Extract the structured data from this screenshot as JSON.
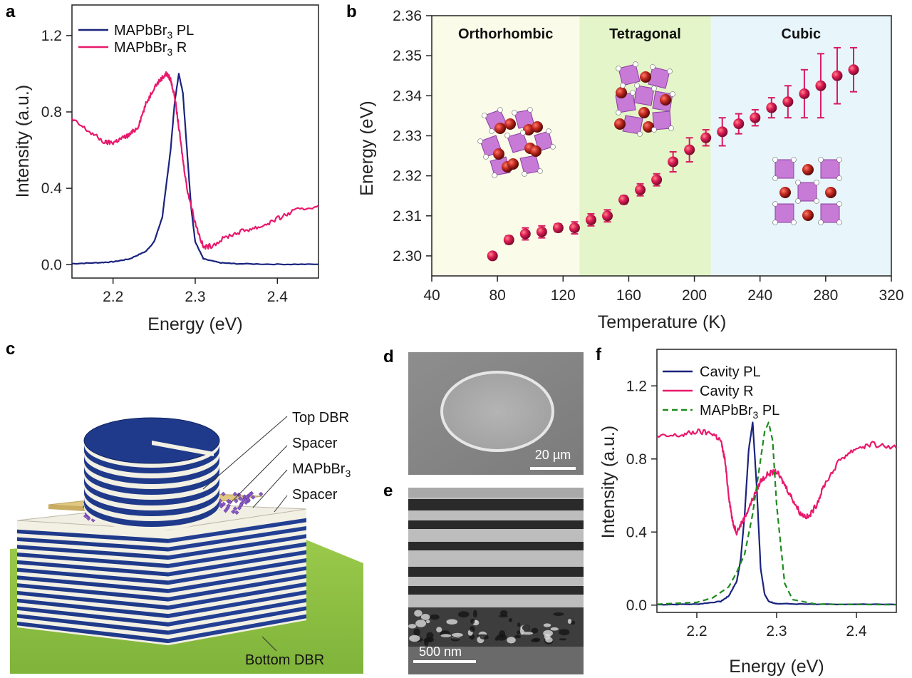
{
  "panels": {
    "a": {
      "letter": "a"
    },
    "b": {
      "letter": "b"
    },
    "c": {
      "letter": "c"
    },
    "d": {
      "letter": "d"
    },
    "e": {
      "letter": "e"
    },
    "f": {
      "letter": "f"
    }
  },
  "colors": {
    "pl": "#1a237e",
    "reflect": "#e8196c",
    "green": "#1e8a1e",
    "dots": "#d81b60",
    "orthorhombic": "#fbfbea",
    "tetragonal": "#e4f5c9",
    "cubic": "#e8f6fb"
  },
  "schematic": {
    "labels": [
      "Top DBR",
      "Spacer",
      "MAPbBr3",
      "Spacer",
      "Bottom DBR"
    ]
  },
  "sem": {
    "scalebar": "20 µm"
  },
  "tem": {
    "scalebar": "500 nm"
  },
  "chart_data": [
    {
      "id": "a",
      "type": "line",
      "xlabel": "Energy (eV)",
      "ylabel": "Intensity (a.u.)",
      "xlim": [
        2.15,
        2.45
      ],
      "ylim": [
        -0.07,
        1.36
      ],
      "xticks": [
        "2.2",
        "2.3",
        "2.4"
      ],
      "yticks": [
        "0.0",
        "0.4",
        "0.8",
        "1.2"
      ],
      "series": [
        {
          "name": "MAPbBr3 PL",
          "x": [
            2.15,
            2.18,
            2.2,
            2.22,
            2.24,
            2.25,
            2.26,
            2.27,
            2.275,
            2.28,
            2.285,
            2.29,
            2.295,
            2.3,
            2.31,
            2.33,
            2.35,
            2.4,
            2.45
          ],
          "y": [
            0.005,
            0.01,
            0.015,
            0.03,
            0.07,
            0.12,
            0.25,
            0.6,
            0.85,
            1.0,
            0.9,
            0.6,
            0.3,
            0.12,
            0.03,
            0.01,
            0.005,
            0.002,
            0.002
          ]
        },
        {
          "name": "MAPbBr3 R",
          "x": [
            2.15,
            2.17,
            2.19,
            2.2,
            2.21,
            2.22,
            2.23,
            2.24,
            2.25,
            2.26,
            2.265,
            2.27,
            2.275,
            2.28,
            2.285,
            2.29,
            2.3,
            2.31,
            2.32,
            2.34,
            2.36,
            2.38,
            2.4,
            2.42,
            2.45
          ],
          "y": [
            0.76,
            0.7,
            0.64,
            0.64,
            0.66,
            0.68,
            0.72,
            0.84,
            0.93,
            0.98,
            1.0,
            0.97,
            0.88,
            0.72,
            0.55,
            0.4,
            0.22,
            0.09,
            0.1,
            0.15,
            0.18,
            0.2,
            0.24,
            0.28,
            0.31
          ]
        }
      ]
    },
    {
      "id": "b",
      "type": "scatter",
      "xlabel": "Temperature (K)",
      "ylabel": "Energy (eV)",
      "xlim": [
        40,
        320
      ],
      "ylim": [
        2.295,
        2.36
      ],
      "xticks": [
        "40",
        "80",
        "120",
        "160",
        "200",
        "240",
        "280",
        "320"
      ],
      "yticks": [
        "2.30",
        "2.31",
        "2.32",
        "2.33",
        "2.34",
        "2.35",
        "2.36"
      ],
      "phases": [
        {
          "name": "Orthorhombic",
          "from": 40,
          "to": 130
        },
        {
          "name": "Tetragonal",
          "from": 130,
          "to": 210
        },
        {
          "name": "Cubic",
          "from": 210,
          "to": 320
        }
      ],
      "x": [
        77,
        87,
        97,
        107,
        117,
        127,
        137,
        147,
        157,
        167,
        177,
        187,
        197,
        207,
        217,
        227,
        237,
        247,
        257,
        267,
        277,
        287,
        297
      ],
      "y": [
        2.3,
        2.304,
        2.3055,
        2.306,
        2.307,
        2.307,
        2.309,
        2.31,
        2.314,
        2.3165,
        2.319,
        2.3235,
        2.3265,
        2.3295,
        2.331,
        2.333,
        2.3345,
        2.337,
        2.3385,
        2.3405,
        2.3425,
        2.345,
        2.3465
      ],
      "err": [
        0,
        0.001,
        0.0015,
        0.0015,
        0.001,
        0.0015,
        0.0015,
        0.0015,
        0.001,
        0.0015,
        0.0015,
        0.0025,
        0.003,
        0.002,
        0.0035,
        0.0025,
        0.002,
        0.0025,
        0.004,
        0.006,
        0.008,
        0.007,
        0.0055
      ]
    },
    {
      "id": "f",
      "type": "line",
      "xlabel": "Energy (eV)",
      "ylabel": "Intensity (a.u.)",
      "xlim": [
        2.15,
        2.45
      ],
      "ylim": [
        -0.04,
        1.4
      ],
      "xticks": [
        "2.2",
        "2.3",
        "2.4"
      ],
      "yticks": [
        "0.0",
        "0.4",
        "0.8",
        "1.2"
      ],
      "series": [
        {
          "name": "Cavity PL",
          "x": [
            2.15,
            2.2,
            2.23,
            2.24,
            2.25,
            2.255,
            2.26,
            2.265,
            2.27,
            2.275,
            2.28,
            2.285,
            2.29,
            2.3,
            2.35,
            2.45
          ],
          "y": [
            0.003,
            0.005,
            0.02,
            0.05,
            0.13,
            0.25,
            0.5,
            0.85,
            1.0,
            0.65,
            0.2,
            0.06,
            0.02,
            0.008,
            0.004,
            0.003
          ]
        },
        {
          "name": "Cavity R",
          "x": [
            2.15,
            2.18,
            2.2,
            2.22,
            2.23,
            2.235,
            2.24,
            2.245,
            2.25,
            2.26,
            2.27,
            2.28,
            2.29,
            2.3,
            2.31,
            2.32,
            2.33,
            2.34,
            2.35,
            2.36,
            2.38,
            2.4,
            2.42,
            2.45
          ],
          "y": [
            0.92,
            0.93,
            0.95,
            0.94,
            0.9,
            0.8,
            0.6,
            0.45,
            0.4,
            0.48,
            0.58,
            0.68,
            0.72,
            0.73,
            0.66,
            0.58,
            0.5,
            0.48,
            0.55,
            0.66,
            0.8,
            0.86,
            0.88,
            0.86
          ]
        },
        {
          "name": "MAPbBr3 PL",
          "x": [
            2.15,
            2.2,
            2.22,
            2.24,
            2.25,
            2.26,
            2.27,
            2.28,
            2.285,
            2.29,
            2.295,
            2.3,
            2.31,
            2.32,
            2.35,
            2.45
          ],
          "y": [
            0.005,
            0.015,
            0.04,
            0.1,
            0.18,
            0.28,
            0.5,
            0.8,
            0.95,
            1.0,
            0.9,
            0.55,
            0.12,
            0.03,
            0.005,
            0.002
          ]
        }
      ]
    }
  ]
}
